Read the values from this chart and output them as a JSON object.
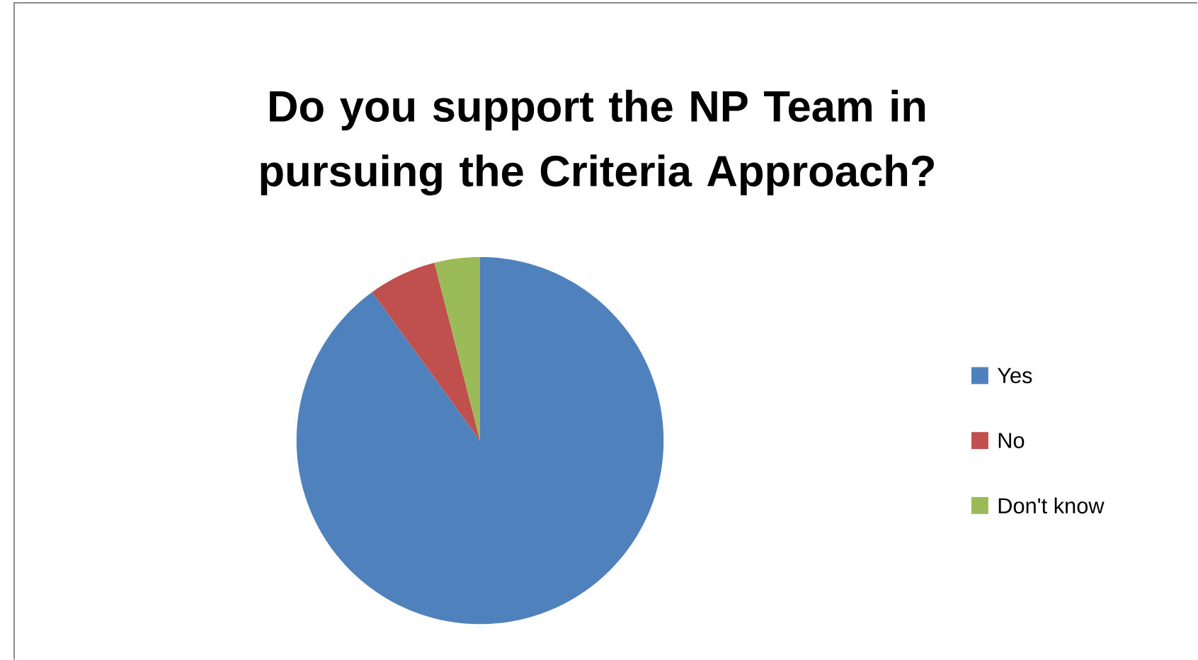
{
  "chart_data": {
    "type": "pie",
    "title": "Do you support the NP Team in pursuing the Criteria Approach?",
    "categories": [
      "Yes",
      "No",
      "Don't know"
    ],
    "values": [
      90,
      6,
      4
    ],
    "colors": [
      "#4f81bd",
      "#c0504d",
      "#9bbb59"
    ],
    "legend": "right"
  }
}
